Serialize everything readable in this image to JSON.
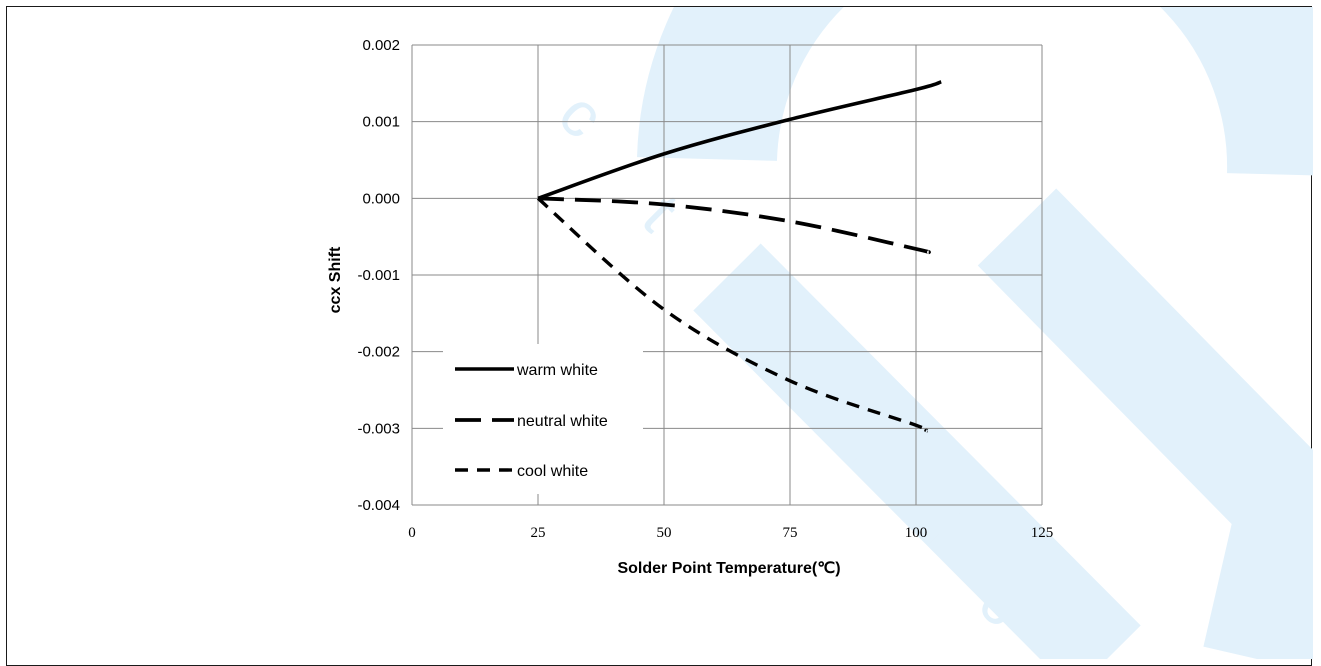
{
  "watermark": {
    "color": "#e2f1fb",
    "letters": [
      "c",
      "t",
      "r",
      "o",
      "n",
      "i",
      "c"
    ]
  },
  "chart_data": {
    "type": "line",
    "title": "",
    "xlabel": "Solder Point Temperature(℃)",
    "ylabel": "ccx Shift",
    "xlim": [
      0,
      125
    ],
    "ylim": [
      -0.004,
      0.002
    ],
    "x_ticks": [
      0,
      25,
      50,
      75,
      100,
      125
    ],
    "x_tick_labels": [
      "0",
      "25",
      "50",
      "75",
      "100",
      "125"
    ],
    "y_ticks": [
      0.002,
      0.001,
      0.0,
      -0.001,
      -0.002,
      -0.003,
      -0.004
    ],
    "y_tick_labels": [
      "0.002",
      "0.001",
      "0.000",
      "-0.001",
      "-0.002",
      "-0.003",
      "-0.004"
    ],
    "grid": true,
    "legend_position": "bottom-left",
    "series": [
      {
        "name": "warm white",
        "dash": "solid",
        "color": "#000000",
        "x": [
          25,
          50,
          75,
          100,
          105
        ],
        "y": [
          0.0,
          0.00058,
          0.00103,
          0.00142,
          0.00152
        ]
      },
      {
        "name": "neutral white",
        "dash": "long-dash",
        "color": "#000000",
        "x": [
          25,
          50,
          75,
          100,
          102
        ],
        "y": [
          0.0,
          -8e-05,
          -0.0003,
          -0.00066,
          -0.0007
        ]
      },
      {
        "name": "cool white",
        "dash": "short-dash",
        "color": "#000000",
        "x": [
          25,
          50,
          75,
          100,
          102
        ],
        "y": [
          0.0,
          -0.00145,
          -0.00238,
          -0.00296,
          -0.00303
        ]
      }
    ]
  }
}
